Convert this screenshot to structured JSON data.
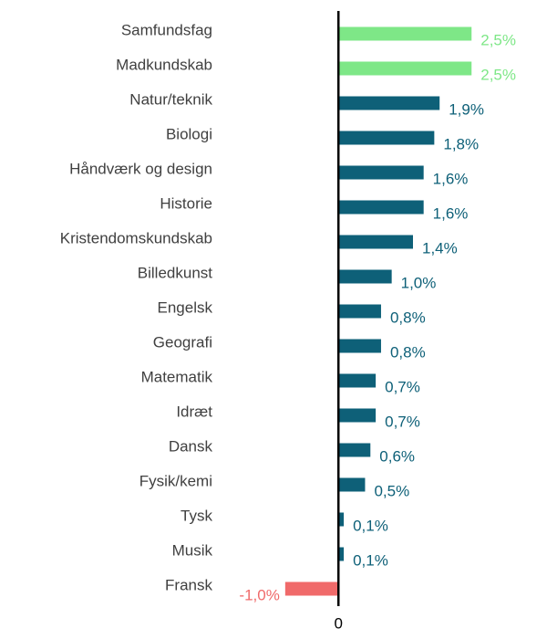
{
  "chart_data": {
    "type": "barh",
    "categories": [
      "Samfundsfag",
      "Madkundskab",
      "Natur/teknik",
      "Biologi",
      "Håndværk og design",
      "Historie",
      "Kristendomskundskab",
      "Billedkunst",
      "Engelsk",
      "Geografi",
      "Matematik",
      "Idræt",
      "Dansk",
      "Fysik/kemi",
      "Tysk",
      "Musik",
      "Fransk"
    ],
    "values": [
      2.5,
      2.5,
      1.9,
      1.8,
      1.6,
      1.6,
      1.4,
      1.0,
      0.8,
      0.8,
      0.7,
      0.7,
      0.6,
      0.5,
      0.1,
      0.1,
      -1.0
    ],
    "value_labels": [
      "2,5%",
      "2,5%",
      "1,9%",
      "1,8%",
      "1,6%",
      "1,6%",
      "1,4%",
      "1,0%",
      "0,8%",
      "0,8%",
      "0,7%",
      "0,7%",
      "0,6%",
      "0,5%",
      "0,1%",
      "0,1%",
      "-1,0%"
    ],
    "colors": [
      "#7ee787",
      "#7ee787",
      "#0e6078",
      "#0e6078",
      "#0e6078",
      "#0e6078",
      "#0e6078",
      "#0e6078",
      "#0e6078",
      "#0e6078",
      "#0e6078",
      "#0e6078",
      "#0e6078",
      "#0e6078",
      "#0e6078",
      "#0e6078",
      "#f06a6a"
    ],
    "xlim": [
      -1.1,
      3.9
    ],
    "xticks": [
      0
    ],
    "grid": false
  }
}
